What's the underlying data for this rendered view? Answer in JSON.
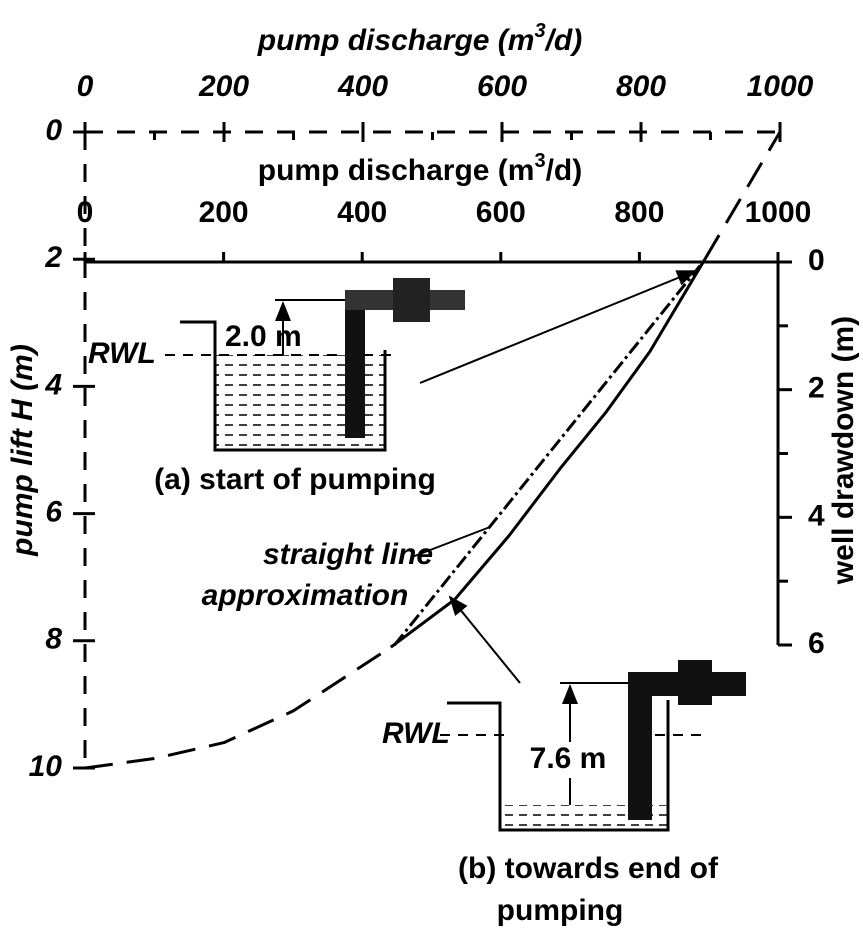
{
  "chart_data": {
    "type": "line",
    "xlabel": [
      "pump discharge (m",
      "3",
      "/d)"
    ],
    "xlim": [
      0,
      1000
    ],
    "xticks": [
      0,
      200,
      400,
      600,
      800,
      1000
    ],
    "xminor": [
      100,
      300,
      500,
      700,
      900
    ],
    "x2label": [
      "pump discharge (m",
      "3",
      "/d)"
    ],
    "x2lim": [
      0,
      1000
    ],
    "x2ticks": [
      0,
      200,
      400,
      600,
      800,
      1000
    ],
    "ylabel": "pump lift H (m)",
    "ylim": [
      0,
      10
    ],
    "yticks": [
      0,
      2,
      4,
      6,
      8,
      10
    ],
    "y2label": "well drawdown (m)",
    "y2lim": [
      0,
      6
    ],
    "y2ticks": [
      0,
      2,
      4,
      6
    ],
    "y2minor": [
      1,
      3,
      5
    ],
    "series": [
      {
        "x": [
          0,
          100,
          200,
          300,
          440
        ],
        "values": [
          10,
          9.85,
          9.6,
          9.1,
          8.1
        ],
        "dash": "long",
        "color": "#000000"
      },
      {
        "x": [
          440,
          532,
          610,
          683,
          750,
          813,
          892
        ],
        "values": [
          8.1,
          7.35,
          6.35,
          5.3,
          4.4,
          3.45,
          2
        ],
        "dash": "solid",
        "color": "#000000"
      },
      {
        "x": [
          892,
          942,
          1000
        ],
        "values": [
          2,
          1.07,
          0
        ],
        "dash": "long",
        "color": "#000000"
      },
      {
        "x": [
          445,
          885
        ],
        "values": [
          8.07,
          2.1
        ],
        "dash": "dashdot",
        "color": "#000000"
      }
    ],
    "annotations": [
      "straight line",
      "approximation"
    ],
    "insets": [
      {
        "water_level": "RWL",
        "lift": "2.0 m",
        "caption": [
          "(a) start of pumping"
        ]
      },
      {
        "water_level": "RWL",
        "lift": "7.6 m",
        "caption": [
          "(b) towards end of",
          "pumping"
        ]
      }
    ]
  }
}
